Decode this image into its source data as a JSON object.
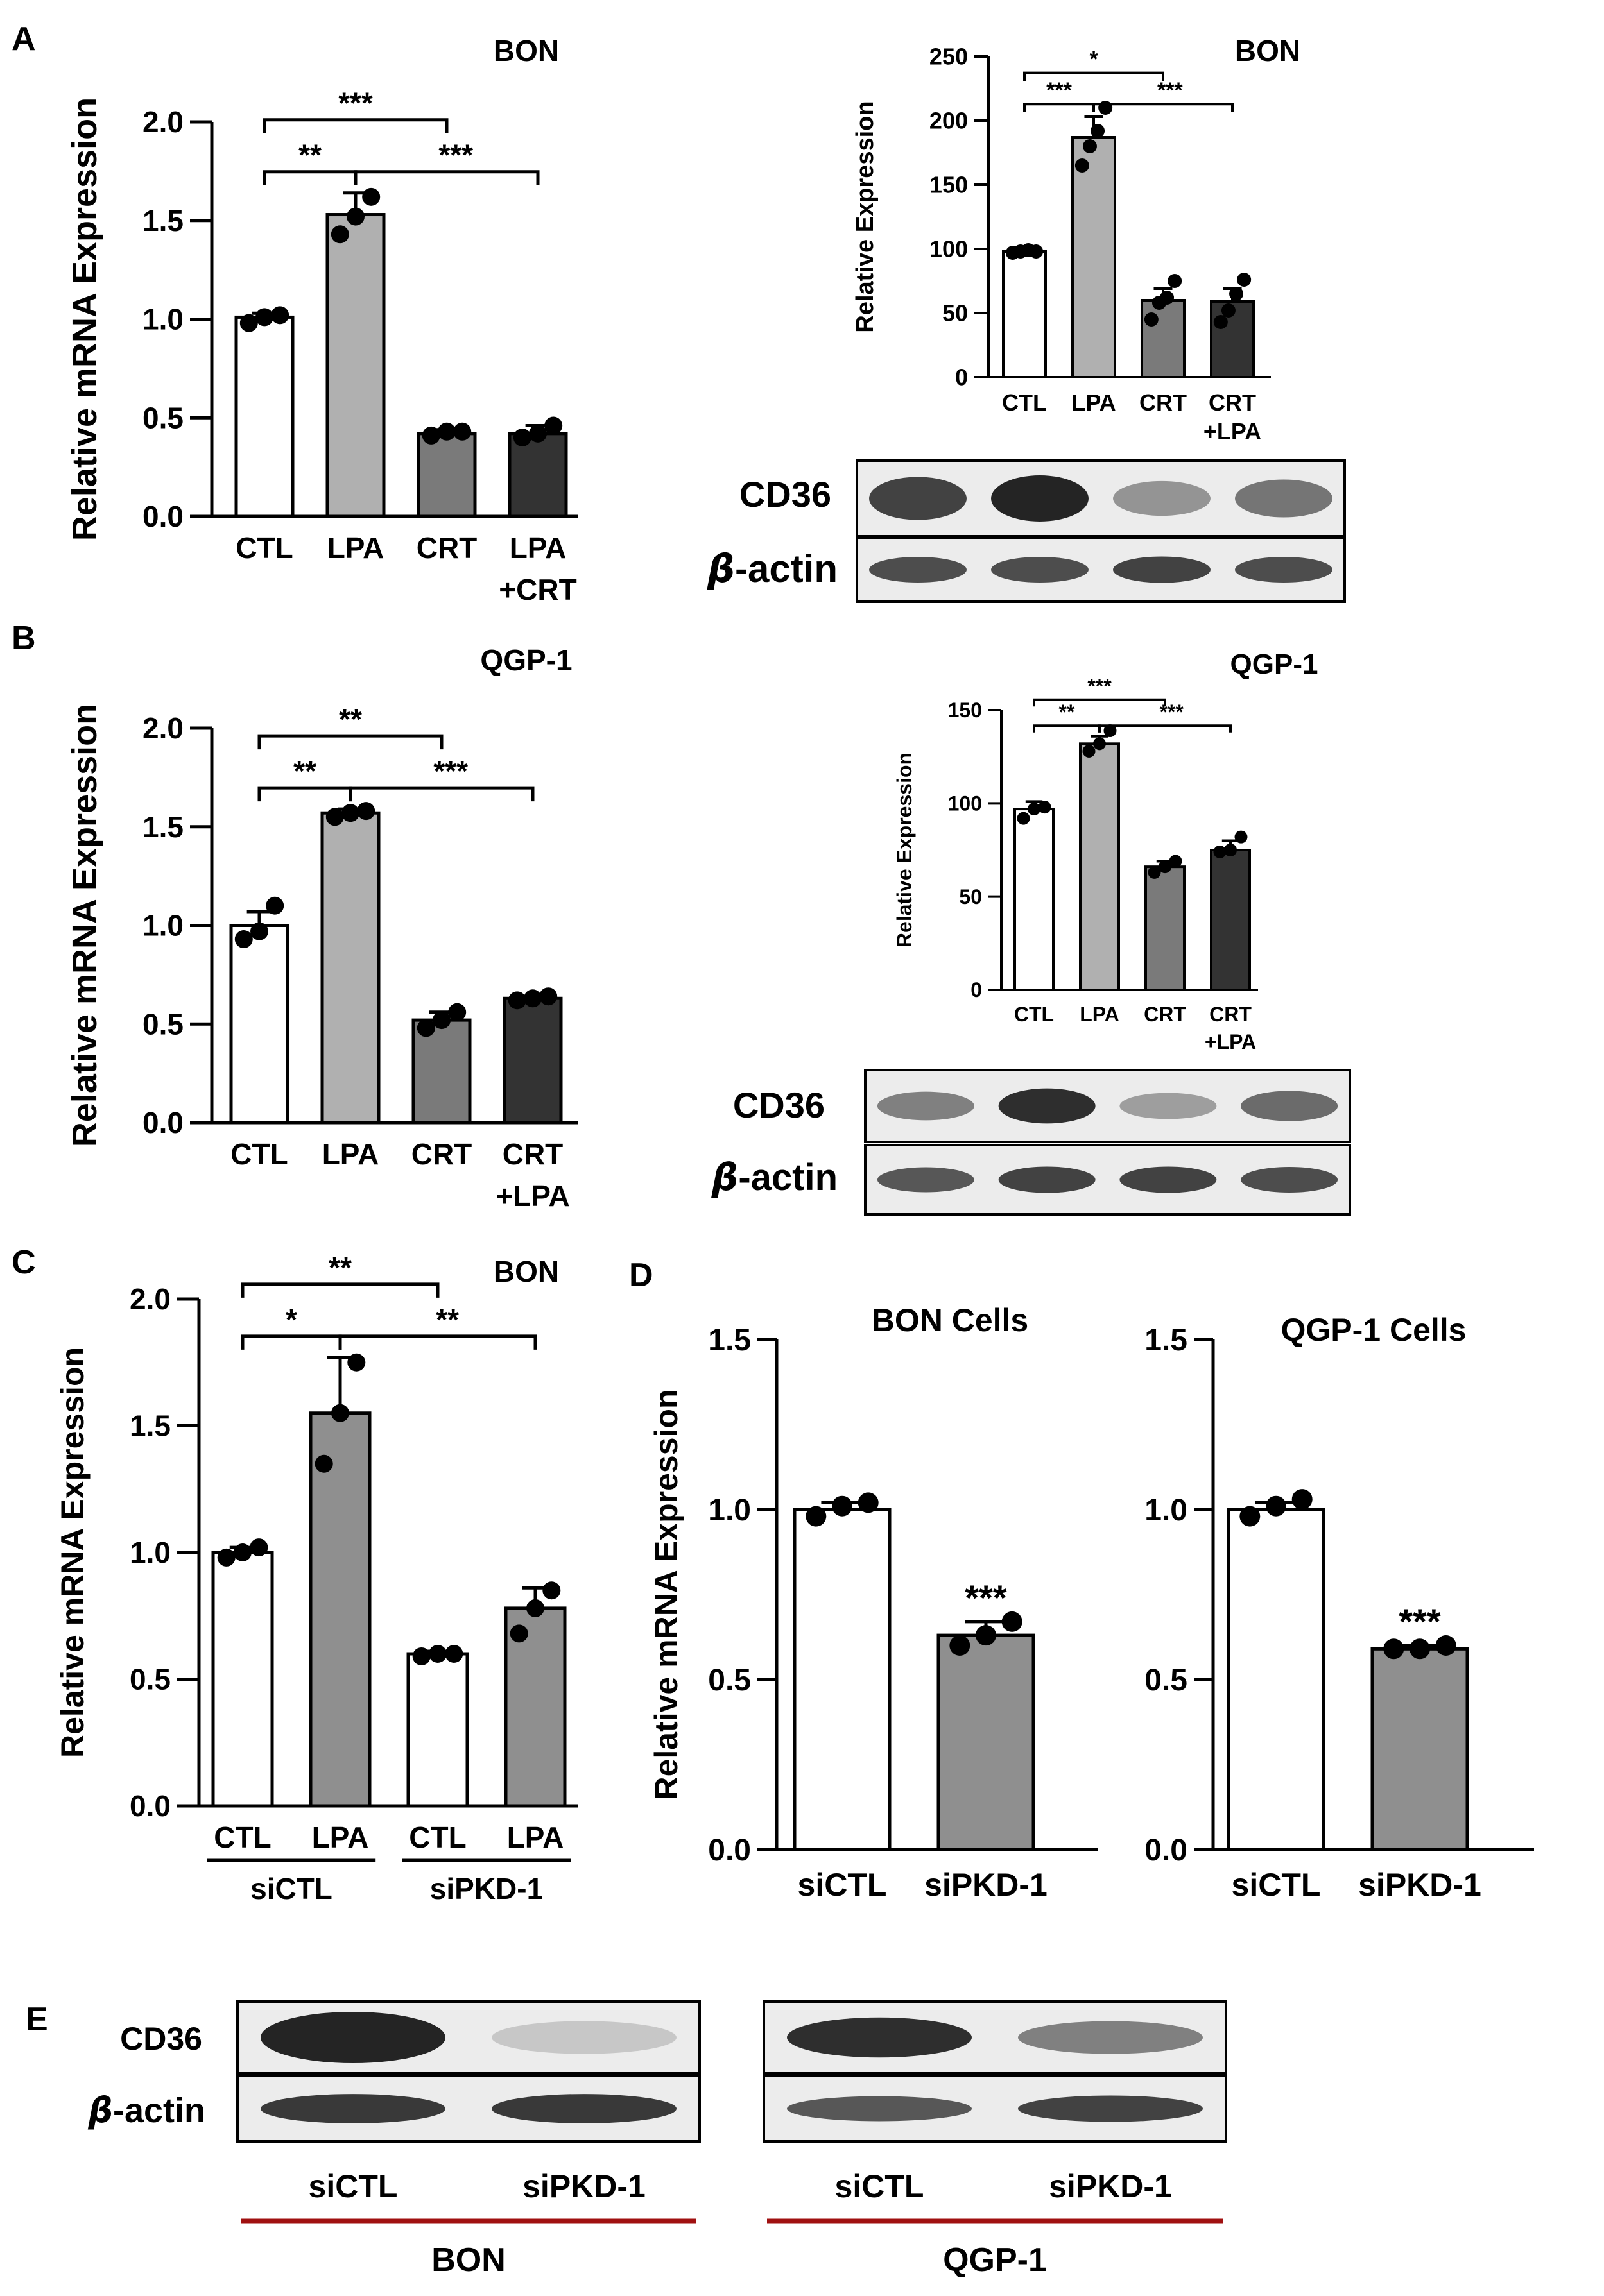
{
  "figure": {
    "panels": {
      "A": {
        "letter": "A",
        "title": "BON"
      },
      "B": {
        "letter": "B",
        "title": "QGP-1"
      },
      "C": {
        "letter": "C",
        "title": "BON"
      },
      "D": {
        "letter": "D"
      },
      "E": {
        "letter": "E"
      }
    }
  },
  "chart_data": [
    {
      "id": "A_mrna",
      "type": "bar",
      "title": "BON",
      "ylabel": "Relative mRNA Expression",
      "ylim": [
        0,
        2.0
      ],
      "yticks": [
        0.0,
        0.5,
        1.0,
        1.5,
        2.0
      ],
      "yticklabels": [
        "0.0",
        "0.5",
        "1.0",
        "1.5",
        "2.0"
      ],
      "categories": [
        [
          "CTL"
        ],
        [
          "LPA"
        ],
        [
          "CRT"
        ],
        [
          "LPA",
          "+CRT"
        ]
      ],
      "values": [
        1.01,
        1.53,
        0.42,
        0.42
      ],
      "errors": [
        0.02,
        0.11,
        0.02,
        0.04
      ],
      "points": [
        [
          0.98,
          1.01,
          1.02
        ],
        [
          1.43,
          1.52,
          1.62
        ],
        [
          0.41,
          0.43,
          0.43
        ],
        [
          0.4,
          0.42,
          0.46
        ]
      ],
      "colors": [
        "#ffffff",
        "#b0b0b0",
        "#7a7a7a",
        "#333333"
      ],
      "significance": [
        {
          "from": 0,
          "to": 2,
          "label": "***",
          "level": 2
        },
        {
          "from": 0,
          "to": 1,
          "label": "**",
          "level": 1
        },
        {
          "from": 1,
          "to": 3,
          "label": "***",
          "level": 1
        }
      ]
    },
    {
      "id": "A_protein",
      "type": "bar",
      "title": "BON",
      "ylabel": "Relative Expression",
      "ylim": [
        0,
        250
      ],
      "yticks": [
        0,
        50,
        100,
        150,
        200,
        250
      ],
      "yticklabels": [
        "0",
        "50",
        "100",
        "150",
        "200",
        "250"
      ],
      "categories": [
        [
          "CTL"
        ],
        [
          "LPA"
        ],
        [
          "CRT"
        ],
        [
          "CRT",
          "+LPA"
        ]
      ],
      "values": [
        98,
        187,
        60,
        59
      ],
      "errors": [
        1,
        16,
        9,
        10
      ],
      "points": [
        [
          97,
          98,
          99,
          98
        ],
        [
          165,
          180,
          192,
          210
        ],
        [
          45,
          58,
          62,
          75
        ],
        [
          43,
          52,
          65,
          76
        ]
      ],
      "colors": [
        "#ffffff",
        "#b0b0b0",
        "#7a7a7a",
        "#333333"
      ],
      "significance": [
        {
          "from": 0,
          "to": 2,
          "label": "*",
          "level": 2
        },
        {
          "from": 0,
          "to": 1,
          "label": "***",
          "level": 1
        },
        {
          "from": 1,
          "to": 3,
          "label": "***",
          "level": 1
        }
      ]
    },
    {
      "id": "B_mrna",
      "type": "bar",
      "title": "QGP-1",
      "ylabel": "Relative mRNA Expression",
      "ylim": [
        0,
        2.0
      ],
      "yticks": [
        0.0,
        0.5,
        1.0,
        1.5,
        2.0
      ],
      "yticklabels": [
        "0.0",
        "0.5",
        "1.0",
        "1.5",
        "2.0"
      ],
      "categories": [
        [
          "CTL"
        ],
        [
          "LPA"
        ],
        [
          "CRT"
        ],
        [
          "CRT",
          "+LPA"
        ]
      ],
      "values": [
        1.0,
        1.57,
        0.52,
        0.63
      ],
      "errors": [
        0.07,
        0.02,
        0.04,
        0.01
      ],
      "points": [
        [
          0.93,
          0.97,
          1.1
        ],
        [
          1.55,
          1.57,
          1.58
        ],
        [
          0.48,
          0.52,
          0.56
        ],
        [
          0.62,
          0.63,
          0.64
        ]
      ],
      "colors": [
        "#ffffff",
        "#b0b0b0",
        "#7a7a7a",
        "#333333"
      ],
      "significance": [
        {
          "from": 0,
          "to": 2,
          "label": "**",
          "level": 2
        },
        {
          "from": 0,
          "to": 1,
          "label": "**",
          "level": 1
        },
        {
          "from": 1,
          "to": 3,
          "label": "***",
          "level": 1
        }
      ]
    },
    {
      "id": "B_protein",
      "type": "bar",
      "title": "QGP-1",
      "ylabel": "Relative Expression",
      "ylim": [
        0,
        150
      ],
      "yticks": [
        0,
        50,
        100,
        150
      ],
      "yticklabels": [
        "0",
        "50",
        "100",
        "150"
      ],
      "categories": [
        [
          "CTL"
        ],
        [
          "LPA"
        ],
        [
          "CRT"
        ],
        [
          "CRT",
          "+LPA"
        ]
      ],
      "values": [
        97,
        132,
        66,
        75
      ],
      "errors": [
        4,
        4,
        3,
        5
      ],
      "points": [
        [
          92,
          97,
          98
        ],
        [
          128,
          132,
          139
        ],
        [
          63,
          66,
          69
        ],
        [
          74,
          75,
          82
        ]
      ],
      "colors": [
        "#ffffff",
        "#b0b0b0",
        "#7a7a7a",
        "#333333"
      ],
      "significance": [
        {
          "from": 0,
          "to": 2,
          "label": "***",
          "level": 2
        },
        {
          "from": 0,
          "to": 1,
          "label": "**",
          "level": 1
        },
        {
          "from": 1,
          "to": 3,
          "label": "***",
          "level": 1
        }
      ]
    },
    {
      "id": "C_mrna",
      "type": "bar",
      "title": "BON",
      "ylabel": "Relative mRNA Expression",
      "ylim": [
        0,
        2.0
      ],
      "yticks": [
        0.0,
        0.5,
        1.0,
        1.5,
        2.0
      ],
      "yticklabels": [
        "0.0",
        "0.5",
        "1.0",
        "1.5",
        "2.0"
      ],
      "categories": [
        [
          "CTL"
        ],
        [
          "LPA"
        ],
        [
          "CTL"
        ],
        [
          "LPA"
        ]
      ],
      "groups": [
        {
          "label": "siCTL",
          "members": [
            0,
            1
          ]
        },
        {
          "label": "siPKD-1",
          "members": [
            2,
            3
          ]
        }
      ],
      "values": [
        1.0,
        1.55,
        0.6,
        0.78
      ],
      "errors": [
        0.02,
        0.22,
        0.01,
        0.08
      ],
      "points": [
        [
          0.98,
          1.0,
          1.02
        ],
        [
          1.35,
          1.55,
          1.75
        ],
        [
          0.59,
          0.6,
          0.6
        ],
        [
          0.68,
          0.78,
          0.85
        ]
      ],
      "colors": [
        "#ffffff",
        "#8f8f8f",
        "#ffffff",
        "#8f8f8f"
      ],
      "significance": [
        {
          "from": 0,
          "to": 2,
          "label": "**",
          "level": 2
        },
        {
          "from": 0,
          "to": 1,
          "label": "*",
          "level": 1
        },
        {
          "from": 1,
          "to": 3,
          "label": "**",
          "level": 1
        }
      ]
    },
    {
      "id": "D_bon",
      "type": "bar",
      "title": "BON Cells",
      "ylabel": "Relative mRNA Expression",
      "ylim": [
        0,
        1.5
      ],
      "yticks": [
        0.0,
        0.5,
        1.0,
        1.5
      ],
      "yticklabels": [
        "0.0",
        "0.5",
        "1.0",
        "1.5"
      ],
      "categories": [
        [
          "siCTL"
        ],
        [
          "siPKD-1"
        ]
      ],
      "values": [
        1.0,
        0.63
      ],
      "errors": [
        0.02,
        0.04
      ],
      "points": [
        [
          0.98,
          1.01,
          1.02
        ],
        [
          0.6,
          0.63,
          0.67
        ]
      ],
      "colors": [
        "#ffffff",
        "#8f8f8f"
      ],
      "stars": [
        "",
        "***"
      ]
    },
    {
      "id": "D_qgp",
      "type": "bar",
      "title": "QGP-1 Cells",
      "ylabel": "",
      "ylim": [
        0,
        1.5
      ],
      "yticks": [
        0.0,
        0.5,
        1.0,
        1.5
      ],
      "yticklabels": [
        "0.0",
        "0.5",
        "1.0",
        "1.5"
      ],
      "categories": [
        [
          "siCTL"
        ],
        [
          "siPKD-1"
        ]
      ],
      "values": [
        1.0,
        0.59
      ],
      "errors": [
        0.02,
        0.01
      ],
      "points": [
        [
          0.98,
          1.01,
          1.03
        ],
        [
          0.59,
          0.59,
          0.6
        ]
      ],
      "colors": [
        "#ffffff",
        "#8f8f8f"
      ],
      "stars": [
        "",
        "***"
      ]
    }
  ],
  "blots": {
    "A": {
      "top_label": "CD36",
      "bottom_label": "actin",
      "beta": "β",
      "top_intensity": [
        0.85,
        1.0,
        0.45,
        0.6
      ],
      "bottom_intensity": [
        0.8,
        0.8,
        0.85,
        0.8
      ]
    },
    "B": {
      "top_label": "CD36",
      "bottom_label": "actin",
      "beta": "β",
      "top_intensity": [
        0.55,
        0.95,
        0.4,
        0.65
      ],
      "bottom_intensity": [
        0.75,
        0.85,
        0.85,
        0.8
      ]
    },
    "E_bon": {
      "top_label": "CD36",
      "bottom_label": "actin",
      "beta": "β",
      "top_intensity": [
        1.0,
        0.2
      ],
      "bottom_intensity": [
        0.9,
        0.9
      ],
      "lanes": [
        "siCTL",
        "siPKD-1"
      ],
      "group": "BON"
    },
    "E_qgp": {
      "top_intensity": [
        0.95,
        0.55
      ],
      "bottom_intensity": [
        0.75,
        0.85
      ],
      "lanes": [
        "siCTL",
        "siPKD-1"
      ],
      "group": "QGP-1"
    }
  },
  "colors": {
    "axis": "#000000",
    "group_rule": "#a01010"
  }
}
